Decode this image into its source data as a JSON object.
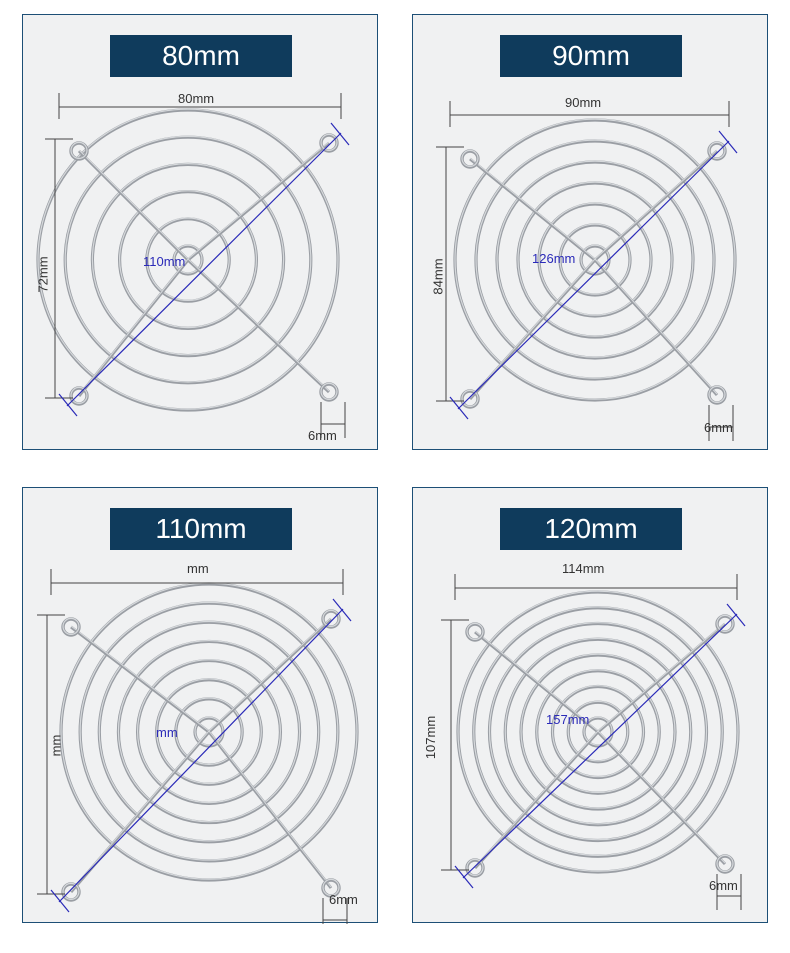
{
  "colors": {
    "title_bg": "#0f3b5c",
    "title_text": "#ffffff",
    "panel_border": "#1d4f76",
    "diag_line": "#2a2ab8",
    "dim_text": "#333333"
  },
  "panels": [
    {
      "title": "80mm",
      "width_label": "80mm",
      "height_label": "72mm",
      "diag_label": "110mm",
      "hole_label": "6mm",
      "rings": 6
    },
    {
      "title": "90mm",
      "width_label": "90mm",
      "height_label": "84mm",
      "diag_label": "126mm",
      "hole_label": "6mm",
      "rings": 7
    },
    {
      "title": "110mm",
      "width_label": "mm",
      "height_label": "mm",
      "diag_label": "mm",
      "hole_label": "6mm",
      "rings": 8
    },
    {
      "title": "120mm",
      "width_label": "114mm",
      "height_label": "107mm",
      "diag_label": "157mm",
      "hole_label": "6mm",
      "rings": 9
    }
  ]
}
